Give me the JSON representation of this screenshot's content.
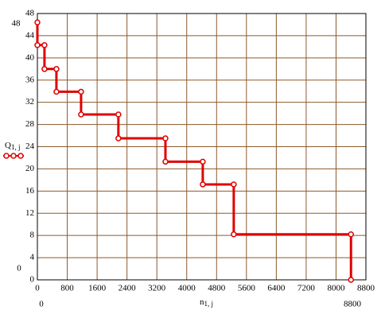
{
  "chart_data": {
    "type": "line",
    "x": [
      0,
      0,
      190,
      190,
      510,
      510,
      1170,
      1170,
      2170,
      2170,
      3430,
      3430,
      4430,
      4430,
      5260,
      5260,
      8400,
      8400
    ],
    "series": [
      {
        "color": "#e00000",
        "values": [
          46.4,
          42.3,
          42.3,
          38,
          38,
          33.9,
          33.9,
          29.8,
          29.8,
          25.5,
          25.5,
          21.3,
          21.3,
          17.2,
          17.2,
          8.2,
          8.2,
          0
        ]
      }
    ],
    "xlim": [
      0,
      8800
    ],
    "xticks": [
      0,
      800,
      1600,
      2400,
      3200,
      4000,
      4800,
      5600,
      6400,
      7200,
      8000,
      8800
    ],
    "ylim": [
      0,
      48
    ],
    "yticks": [
      0,
      4,
      8,
      12,
      16,
      20,
      24,
      28,
      32,
      36,
      40,
      44,
      48
    ],
    "ylabel": {
      "main": "Q",
      "sub": "1, j"
    },
    "xlabel": {
      "main": "n",
      "sub": "1, j"
    },
    "y_range_labels": {
      "top": 48,
      "bottom": 0
    },
    "x_range_labels": {
      "left": 0,
      "right": 8800
    },
    "grid": true
  }
}
